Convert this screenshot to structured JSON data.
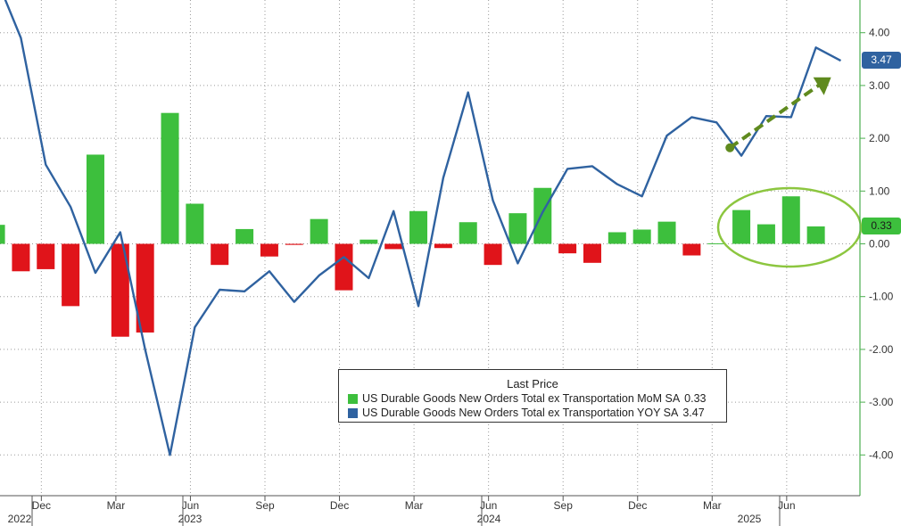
{
  "chart_data": {
    "type": "bar",
    "legend": {
      "title": "Last Price",
      "placement": "bottom-center"
    },
    "series": [
      {
        "name": "US Durable Goods New Orders Total ex Transportation MoM SA",
        "last_value": "0.33",
        "kind": "bar",
        "color_positive": "#3dbf3d",
        "color_negative": "#e0141a",
        "values": [
          0.36,
          -0.52,
          -0.48,
          -1.18,
          1.69,
          -1.76,
          -1.68,
          2.48,
          0.76,
          -0.4,
          0.28,
          -0.24,
          -0.02,
          0.47,
          -0.88,
          0.08,
          -0.1,
          0.62,
          -0.08,
          0.41,
          -0.4,
          0.58,
          1.06,
          -0.18,
          -0.36,
          0.22,
          0.27,
          0.42,
          -0.22,
          0.01,
          0.64,
          0.37,
          0.9,
          0.33
        ]
      },
      {
        "name": "US Durable Goods New Orders Total ex Transportation YOY SA",
        "last_value": "3.47",
        "kind": "line",
        "color": "#2f62a0",
        "values": [
          5.05,
          3.9,
          1.5,
          0.7,
          -0.55,
          0.22,
          -2.0,
          -4.0,
          -1.58,
          -0.87,
          -0.9,
          -0.52,
          -1.1,
          -0.6,
          -0.25,
          -0.65,
          0.62,
          -1.18,
          1.25,
          2.87,
          0.82,
          -0.37,
          0.6,
          1.42,
          1.47,
          1.13,
          0.9,
          2.05,
          2.4,
          2.3,
          1.67,
          2.42,
          2.4,
          3.72,
          3.47
        ]
      }
    ],
    "x_labels_months": [
      "Dec",
      "Mar",
      "Jun",
      "Sep",
      "Dec",
      "Mar",
      "Jun",
      "Sep",
      "Dec",
      "Mar",
      "Jun"
    ],
    "x_labels_years": [
      "2022",
      "2023",
      "2024",
      "2025"
    ],
    "y_ticks": [
      "4.00",
      "3.00",
      "2.00",
      "1.00",
      "0.00",
      "-1.00",
      "-2.00",
      "-3.00",
      "-4.00"
    ],
    "ylim": [
      -4.6,
      4.6
    ],
    "grid": true,
    "axis_color": "#4caf50",
    "annotations": [
      "dashed arrow rising from 1.8 at Mar 2025 to 3.2 at Jul 2025",
      "ellipse around Mar–Aug 2025 MoM bars"
    ]
  }
}
